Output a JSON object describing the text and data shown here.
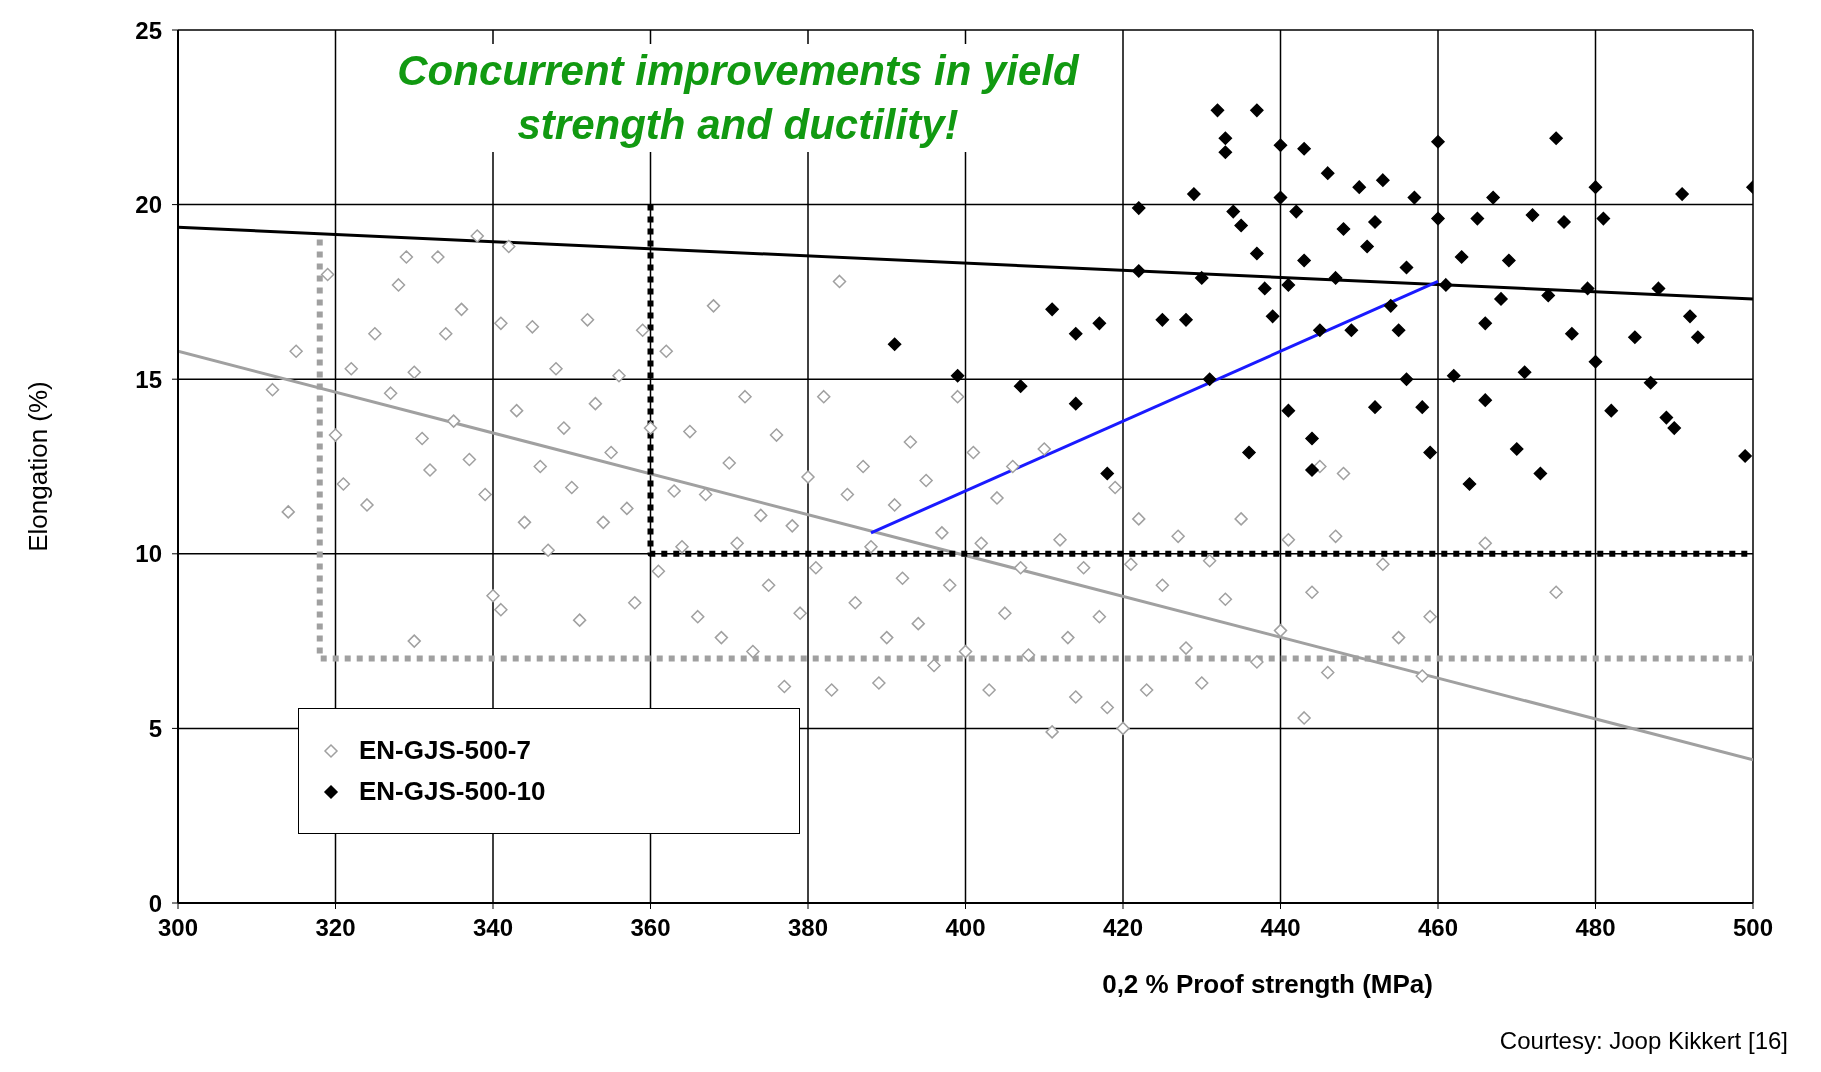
{
  "chart_data": {
    "type": "scatter",
    "xlabel": "0,2 % Proof strength (MPa)",
    "ylabel": "Elongation (%)",
    "annotations": [
      "Concurrent improvements in yield strength and ductility!",
      "Courtesy: Joop Kikkert [16]"
    ],
    "xlim": [
      300,
      500
    ],
    "xticks": [
      300,
      320,
      340,
      360,
      380,
      400,
      420,
      440,
      460,
      480,
      500
    ],
    "ylim": [
      0,
      25
    ],
    "yticks": [
      0,
      5,
      10,
      15,
      20,
      25
    ],
    "grid": true,
    "legend": "bottom left",
    "series": [
      {
        "name": "EN-GJS-500-7",
        "color": "#a0a0a0",
        "marker": "diamond",
        "x": [
          312,
          314,
          315,
          319,
          320,
          321,
          322,
          324,
          325,
          327,
          328,
          329,
          330,
          330,
          331,
          332,
          333,
          334,
          335,
          336,
          337,
          338,
          339,
          340,
          341,
          341,
          342,
          343,
          344,
          345,
          346,
          347,
          348,
          349,
          350,
          351,
          352,
          353,
          354,
          355,
          356,
          357,
          358,
          359,
          360,
          361,
          362,
          363,
          364,
          365,
          366,
          367,
          368,
          369,
          370,
          371,
          372,
          373,
          374,
          375,
          376,
          377,
          378,
          379,
          380,
          381,
          382,
          383,
          384,
          385,
          386,
          387,
          388,
          389,
          390,
          391,
          392,
          393,
          394,
          395,
          396,
          397,
          398,
          399,
          400,
          401,
          402,
          403,
          404,
          405,
          406,
          407,
          408,
          410,
          411,
          412,
          413,
          414,
          415,
          417,
          418,
          419,
          420,
          421,
          422,
          423,
          425,
          427,
          428,
          430,
          431,
          433,
          435,
          437,
          440,
          441,
          443,
          444,
          445,
          446,
          447,
          448,
          453,
          455,
          458,
          459,
          466,
          475
        ],
        "values": [
          14.7,
          11.2,
          15.8,
          18,
          13.4,
          12,
          15.3,
          11.4,
          16.3,
          14.6,
          17.7,
          18.5,
          15.2,
          7.5,
          13.3,
          12.4,
          18.5,
          16.3,
          13.8,
          17,
          12.7,
          19.1,
          11.7,
          8.8,
          16.6,
          8.4,
          18.8,
          14.1,
          10.9,
          16.5,
          12.5,
          10.1,
          15.3,
          13.6,
          11.9,
          8.1,
          16.7,
          14.3,
          10.9,
          12.9,
          15.1,
          11.3,
          8.6,
          16.4,
          13.6,
          9.5,
          15.8,
          11.8,
          10.2,
          13.5,
          8.2,
          11.7,
          17.1,
          7.6,
          12.6,
          10.3,
          14.5,
          7.2,
          11.1,
          9.1,
          13.4,
          6.2,
          10.8,
          8.3,
          12.2,
          9.6,
          14.5,
          6.1,
          17.8,
          11.7,
          8.6,
          12.5,
          10.2,
          6.3,
          7.6,
          11.4,
          9.3,
          13.2,
          8,
          12.1,
          6.8,
          10.6,
          9.1,
          14.5,
          7.2,
          12.9,
          10.3,
          6.1,
          11.6,
          8.3,
          12.5,
          9.6,
          7.1,
          13,
          4.9,
          10.4,
          7.6,
          5.9,
          9.6,
          8.2,
          5.6,
          11.9,
          5,
          9.7,
          11,
          6.1,
          9.1,
          10.5,
          7.3,
          6.3,
          9.8,
          8.7,
          11,
          6.9,
          7.8,
          10.4,
          5.3,
          8.9,
          12.5,
          6.6,
          10.5,
          12.3,
          9.7,
          7.6,
          6.5,
          8.2,
          10.3,
          8.9
        ]
      },
      {
        "name": "EN-GJS-500-10",
        "color": "#000000",
        "marker": "diamond",
        "x": [
          391,
          399,
          407,
          411,
          414,
          414,
          417,
          418,
          422,
          422,
          425,
          428,
          429,
          430,
          431,
          432,
          433,
          433,
          434,
          435,
          436,
          437,
          437,
          438,
          439,
          440,
          440,
          441,
          441,
          442,
          443,
          443,
          444,
          444,
          445,
          446,
          447,
          448,
          449,
          450,
          451,
          452,
          452,
          453,
          454,
          455,
          456,
          456,
          457,
          458,
          459,
          460,
          460,
          461,
          462,
          463,
          464,
          465,
          466,
          466,
          467,
          468,
          469,
          470,
          471,
          472,
          473,
          474,
          475,
          476,
          477,
          479,
          480,
          480,
          481,
          482,
          485,
          487,
          488,
          489,
          490,
          491,
          492,
          493,
          499,
          500
        ],
        "values": [
          16,
          15.1,
          14.8,
          17,
          16.3,
          14.3,
          16.6,
          12.3,
          19.9,
          18.1,
          16.7,
          16.7,
          20.3,
          17.9,
          15,
          22.7,
          21.9,
          21.5,
          19.8,
          19.4,
          12.9,
          22.7,
          18.6,
          17.6,
          16.8,
          21.7,
          20.2,
          17.7,
          14.1,
          19.8,
          21.6,
          18.4,
          13.3,
          12.4,
          16.4,
          20.9,
          17.9,
          19.3,
          16.4,
          20.5,
          18.8,
          19.5,
          14.2,
          20.7,
          17.1,
          16.4,
          15,
          18.2,
          20.2,
          14.2,
          12.9,
          21.8,
          19.6,
          17.7,
          15.1,
          18.5,
          12,
          19.6,
          16.6,
          14.4,
          20.2,
          17.3,
          18.4,
          13,
          15.2,
          19.7,
          12.3,
          17.4,
          21.9,
          19.5,
          16.3,
          17.6,
          20.5,
          15.5,
          19.6,
          14.1,
          16.2,
          14.9,
          17.6,
          13.9,
          13.6,
          20.3,
          16.8,
          16.2,
          12.8,
          20.5
        ]
      },
      {
        "type": "line",
        "color": "#000000",
        "x": [
          300,
          500
        ],
        "values": [
          19.35,
          17.3
        ]
      },
      {
        "type": "line",
        "color": "#a0a0a0",
        "x": [
          300,
          500
        ],
        "values": [
          15.8,
          4.1
        ]
      },
      {
        "type": "line",
        "color": "#1a1aff",
        "x": [
          388,
          460
        ],
        "values": [
          10.6,
          17.8
        ]
      },
      {
        "type": "line",
        "color": "#a0a0a0",
        "line_style": "dotted",
        "x": [
          318,
          318,
          500
        ],
        "values": [
          19,
          7,
          7
        ]
      },
      {
        "type": "line",
        "color": "#000000",
        "line_style": "dotted",
        "x": [
          360,
          360,
          500
        ],
        "values": [
          20,
          10,
          10
        ]
      }
    ]
  }
}
